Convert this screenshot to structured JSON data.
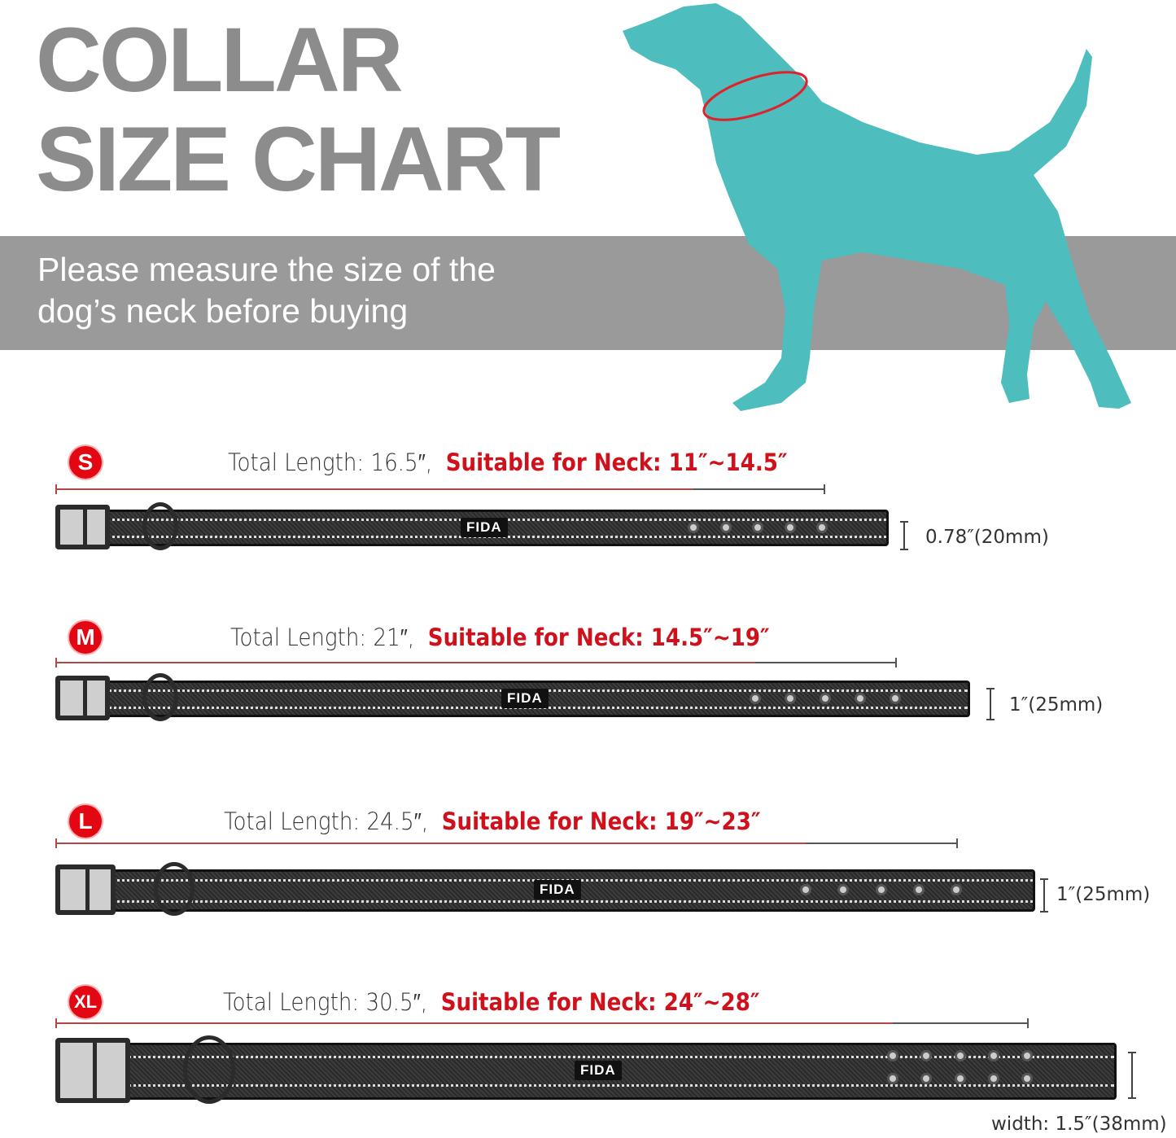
{
  "header": {
    "title_line1": "COLLAR",
    "title_line2": "SIZE CHART",
    "subtitle_line1": "Please measure the size of the",
    "subtitle_line2": "dog’s neck before buying"
  },
  "colors": {
    "title": "#8c8c8c",
    "band": "#9a9a9a",
    "dog": "#4dbdbd",
    "neck_ring": "#e0202a",
    "accent": "#d0101a"
  },
  "brand": "FIDA",
  "sizes": [
    {
      "size": "S",
      "total": "Total Length: 16.5″,",
      "neck": "Suitable for Neck: 11″~14.5″",
      "width": "0.78″(20mm)"
    },
    {
      "size": "M",
      "total": "Total Length: 21″,",
      "neck": "Suitable for Neck: 14.5″~19″",
      "width": "1″(25mm)"
    },
    {
      "size": "L",
      "total": "Total Length: 24.5″,",
      "neck": "Suitable for Neck: 19″~23″",
      "width": "1″(25mm)"
    },
    {
      "size": "XL",
      "total": "Total Length: 30.5″,",
      "neck": "Suitable for Neck: 24″~28″",
      "width": "width: 1.5″(38mm)"
    }
  ]
}
